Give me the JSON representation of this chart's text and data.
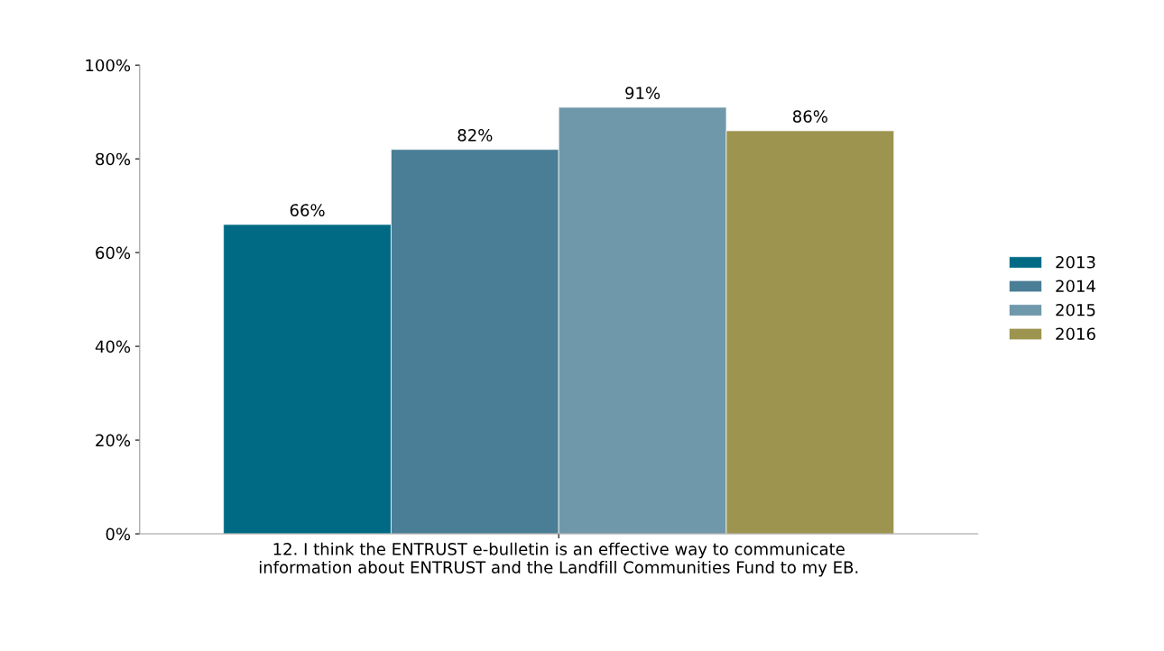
{
  "chart_data": {
    "type": "bar",
    "categories": [
      "12. I think the ENTRUST e-bulletin is an effective way to communicate\ninformation about ENTRUST and the Landfill Communities Fund to my EB."
    ],
    "series": [
      {
        "name": "2013",
        "color": "#006a85",
        "values": [
          66
        ],
        "value_labels": [
          "66%"
        ]
      },
      {
        "name": "2014",
        "color": "#4a7d96",
        "values": [
          82
        ],
        "value_labels": [
          "82%"
        ]
      },
      {
        "name": "2015",
        "color": "#6f98ab",
        "values": [
          91
        ],
        "value_labels": [
          "91%"
        ]
      },
      {
        "name": "2016",
        "color": "#9d9450",
        "values": [
          86
        ],
        "value_labels": [
          "86%"
        ]
      }
    ],
    "ylim": [
      0,
      100
    ],
    "yticks": [
      {
        "value": 0,
        "label": "0%"
      },
      {
        "value": 20,
        "label": "20%"
      },
      {
        "value": 40,
        "label": "40%"
      },
      {
        "value": 60,
        "label": "60%"
      },
      {
        "value": 80,
        "label": "80%"
      },
      {
        "value": 100,
        "label": "100%"
      }
    ],
    "grid": false,
    "legend": "right"
  }
}
